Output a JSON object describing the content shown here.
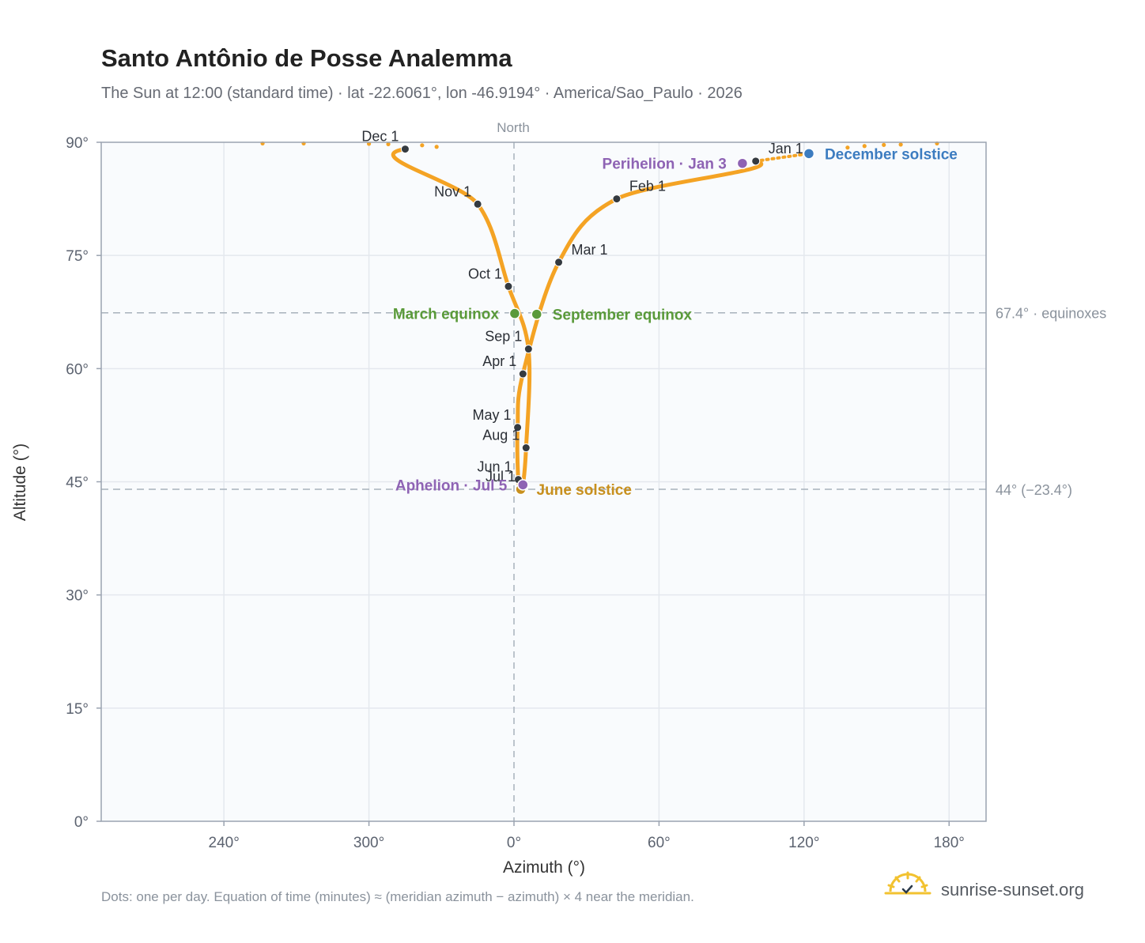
{
  "header": {
    "title": "Santo Antônio de Posse Analemma",
    "subtitle": "The Sun at 12:00 (standard time) · lat -22.6061°, lon -46.9194° · America/Sao_Paulo · 2026"
  },
  "footer": {
    "note": "Dots: one per day. Equation of time (minutes) ≈ (meridian azimuth − azimuth) × 4 near the meridian.",
    "brand": "sunrise-sunset.org"
  },
  "chart_data": {
    "type": "scatter",
    "title": "Santo Antônio de Posse Analemma",
    "xlabel": "Azimuth (°)",
    "ylabel": "Altitude (°)",
    "x_axis": {
      "scale": "azimuth centered on north (0°), running 190°→0°→180°",
      "range_offset_from_north": [
        -170,
        196
      ],
      "ticks": [
        {
          "label": "240°",
          "value": 240
        },
        {
          "label": "300°",
          "value": 300
        },
        {
          "label": "0°",
          "value": 0
        },
        {
          "label": "60°",
          "value": 60
        },
        {
          "label": "120°",
          "value": 120
        },
        {
          "label": "180°",
          "value": 180
        }
      ]
    },
    "y_axis": {
      "range": [
        0,
        90
      ],
      "ticks": [
        {
          "label": "0°",
          "value": 0
        },
        {
          "label": "15°",
          "value": 15
        },
        {
          "label": "30°",
          "value": 30
        },
        {
          "label": "45°",
          "value": 45
        },
        {
          "label": "60°",
          "value": 60
        },
        {
          "label": "75°",
          "value": 75
        },
        {
          "label": "90°",
          "value": 90
        }
      ]
    },
    "grid": true,
    "north_label": "North",
    "reference_lines": [
      {
        "value": 67.4,
        "label": "67.4° · equinoxes"
      },
      {
        "value": 44,
        "label": "44° (−23.4°)"
      }
    ],
    "colors": {
      "path": "#f4a324",
      "month_marker": "#343a40",
      "equinox": "#5a9a3a",
      "june_solstice": "#c8901e",
      "december_solstice": "#3c7cc0",
      "apsides": "#8e63b4",
      "grid": "#e4e8ee",
      "plot_bg": "#f9fbfd",
      "frame": "#9aa3b0",
      "reference": "#a8b2bc"
    },
    "month_markers": [
      {
        "label": "Jan 1",
        "az": 100,
        "alt": 87.5
      },
      {
        "label": "Feb 1",
        "az": 42.5,
        "alt": 82.5
      },
      {
        "label": "Mar 1",
        "az": 18.5,
        "alt": 74.1
      },
      {
        "label": "Apr 1",
        "az": 3.7,
        "alt": 59.3
      },
      {
        "label": "May 1",
        "az": 1.5,
        "alt": 52.2
      },
      {
        "label": "Jun 1",
        "az": 1.8,
        "alt": 45.3
      },
      {
        "label": "Jul 1",
        "az": 3.3,
        "alt": 44.0
      },
      {
        "label": "Aug 1",
        "az": 5.0,
        "alt": 49.5
      },
      {
        "label": "Sep 1",
        "az": 6.0,
        "alt": 62.6
      },
      {
        "label": "Oct 1",
        "az": 357.7,
        "alt": 70.9
      },
      {
        "label": "Nov 1",
        "az": 345,
        "alt": 81.8
      },
      {
        "label": "Dec 1",
        "az": 315,
        "alt": 89.1
      }
    ],
    "events": [
      {
        "label": "March equinox",
        "az": 0.3,
        "alt": 67.3,
        "kind": "equinox",
        "side": "left"
      },
      {
        "label": "September equinox",
        "az": 9.4,
        "alt": 67.2,
        "kind": "equinox",
        "side": "right"
      },
      {
        "label": "June solstice",
        "az": 2.8,
        "alt": 44.0,
        "kind": "june_solstice",
        "side": "right"
      },
      {
        "label": "December solstice",
        "az": 122,
        "alt": 88.5,
        "kind": "december_solstice",
        "side": "right"
      },
      {
        "label": "Perihelion · Jan 3",
        "az": 94.5,
        "alt": 87.2,
        "kind": "apsides",
        "side": "left"
      },
      {
        "label": "Aphelion · Jul 5",
        "az": 3.7,
        "alt": 44.6,
        "kind": "apsides",
        "side": "left"
      }
    ],
    "sparse_dots": [
      {
        "az": 256,
        "alt": 89.85
      },
      {
        "az": 273,
        "alt": 89.85
      },
      {
        "az": 300,
        "alt": 89.8
      },
      {
        "az": 308,
        "alt": 89.75
      },
      {
        "az": 322,
        "alt": 89.6
      },
      {
        "az": 328,
        "alt": 89.4
      },
      {
        "az": 160,
        "alt": 89.7
      },
      {
        "az": 145,
        "alt": 89.5
      },
      {
        "az": 138,
        "alt": 89.3
      },
      {
        "az": 175,
        "alt": 89.85
      },
      {
        "az": 153,
        "alt": 89.65
      }
    ]
  }
}
